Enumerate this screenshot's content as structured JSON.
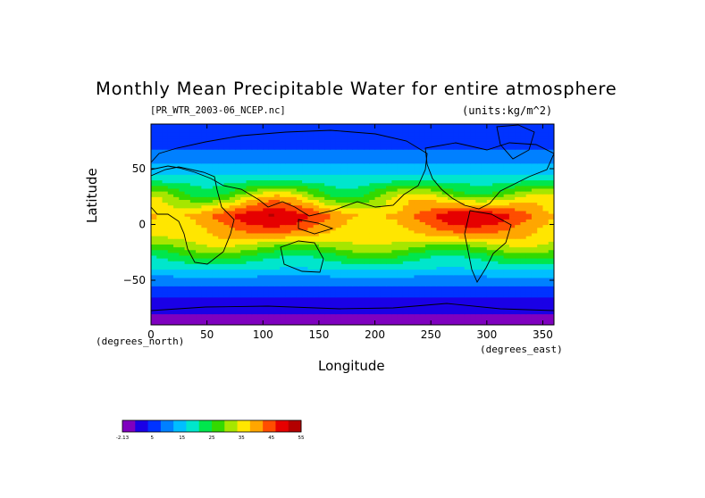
{
  "figure": {
    "title": "Monthly Mean Precipitable Water for entire atmosphere",
    "source_tag": "[PR_WTR_2003-06_NCEP.nc]",
    "units": "(units:kg/m^2)",
    "y_label": "Latitude",
    "y_units": "(degrees_north)",
    "x_label": "Longitude",
    "x_units": "(degrees_east)"
  },
  "chart_data": {
    "type": "heatmap",
    "map": "global field, equatorial longitude 0-360",
    "x_ticks": [
      0,
      50,
      100,
      150,
      200,
      250,
      300,
      350
    ],
    "y_ticks": [
      50,
      0,
      -50
    ],
    "xlim": [
      0,
      360
    ],
    "ylim": [
      -90,
      90
    ],
    "colorbar": {
      "tick_labels": [
        "-2.13",
        "5",
        "15",
        "25",
        "35",
        "45",
        "55"
      ],
      "colors": [
        "#7f00bf",
        "#1a00e6",
        "#0033ff",
        "#0080ff",
        "#00bfff",
        "#00e6cc",
        "#00e64d",
        "#33d900",
        "#a6e600",
        "#ffe600",
        "#ffa600",
        "#ff4d00",
        "#e60000",
        "#b30000"
      ]
    },
    "lat_bands": [
      {
        "lat": -90,
        "value": 1
      },
      {
        "lat": -75,
        "value": 3
      },
      {
        "lat": -62,
        "value": 8
      },
      {
        "lat": -50,
        "value": 13
      },
      {
        "lat": -40,
        "value": 20
      },
      {
        "lat": -30,
        "value": 26
      },
      {
        "lat": -20,
        "value": 34
      },
      {
        "lat": -10,
        "value": 42
      },
      {
        "lat": 0,
        "value": 46
      },
      {
        "lat": 8,
        "value": 49
      },
      {
        "lat": 20,
        "value": 40
      },
      {
        "lat": 30,
        "value": 31
      },
      {
        "lat": 40,
        "value": 23
      },
      {
        "lat": 55,
        "value": 15
      },
      {
        "lat": 70,
        "value": 10
      },
      {
        "lat": 90,
        "value": 8
      }
    ]
  }
}
